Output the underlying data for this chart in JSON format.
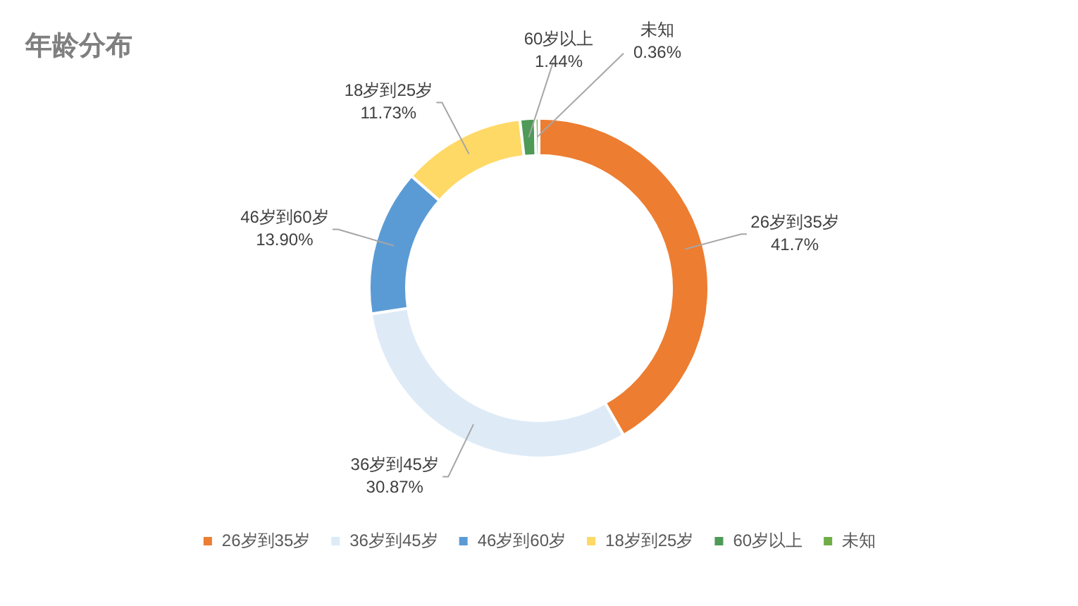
{
  "chart_data": {
    "type": "donut",
    "title": "年龄分布",
    "categories": [
      "26岁到35岁",
      "36岁到45岁",
      "46岁到60岁",
      "18岁到25岁",
      "60岁以上",
      "未知"
    ],
    "values": [
      41.7,
      30.87,
      13.9,
      11.73,
      1.44,
      0.36
    ],
    "value_labels": [
      "41.7%",
      "30.87%",
      "13.90%",
      "11.73%",
      "1.44%",
      "0.36%"
    ],
    "colors": [
      "#ed7d31",
      "#deebf7",
      "#5b9bd5",
      "#ffd966",
      "#4e9a57",
      "#70ad47"
    ],
    "legend": "bottom"
  }
}
